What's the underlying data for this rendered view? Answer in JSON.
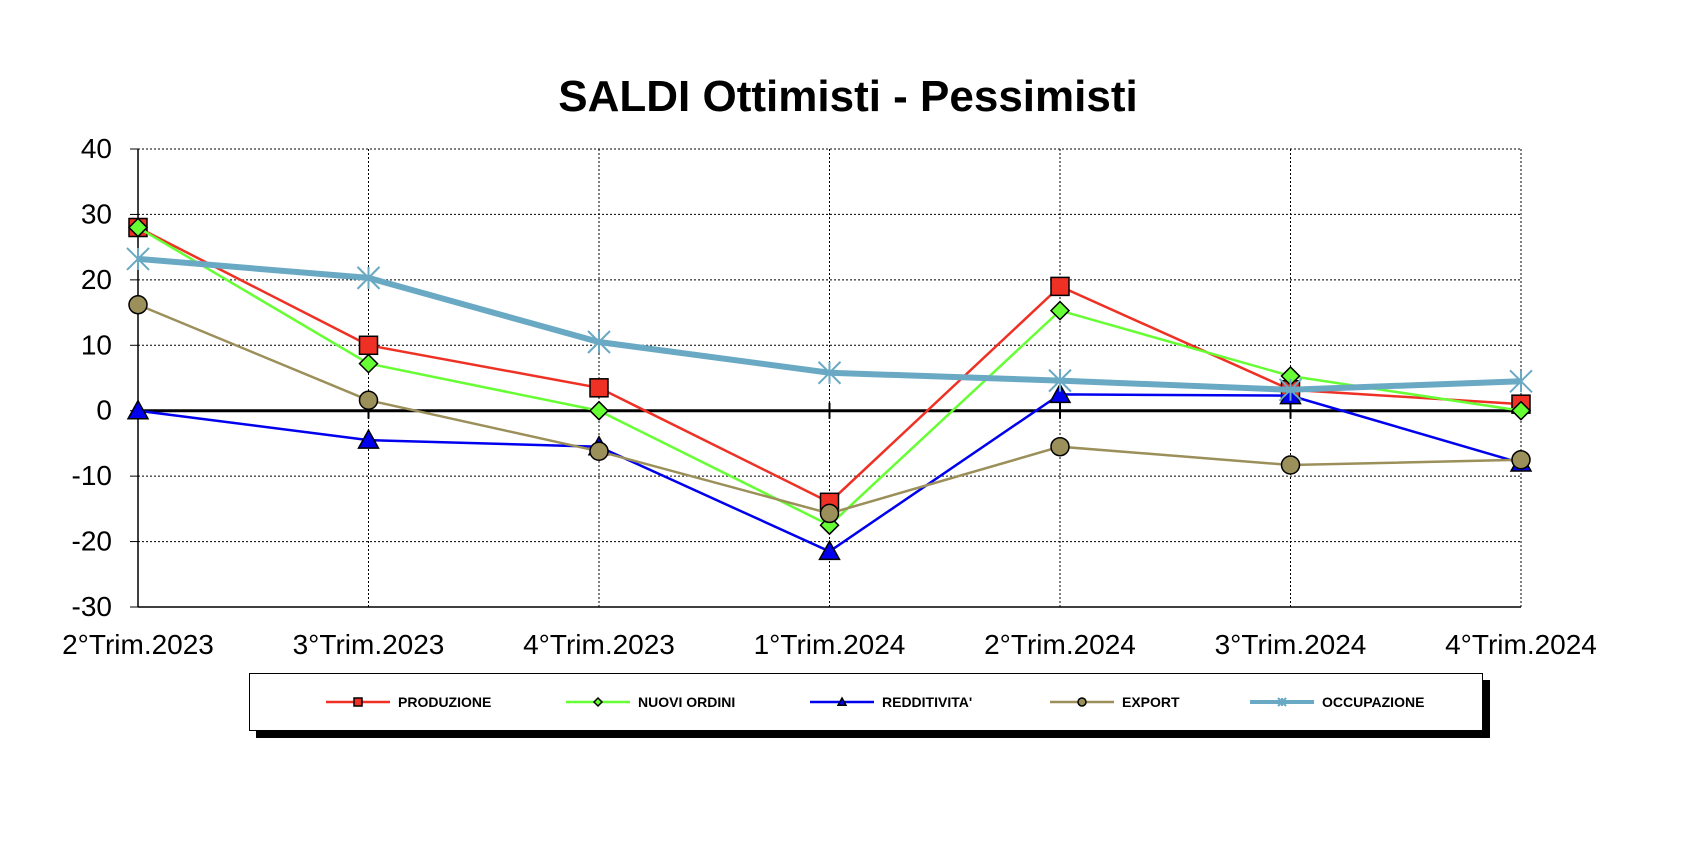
{
  "chart_data": {
    "type": "line",
    "title": "SALDI Ottimisti - Pessimisti",
    "xlabel": "",
    "ylabel": "",
    "categories": [
      "2°Trim.2023",
      "3°Trim.2023",
      "4°Trim.2023",
      "1°Trim.2024",
      "2°Trim.2024",
      "3°Trim.2024",
      "4°Trim.2024"
    ],
    "ylim": [
      -30,
      40
    ],
    "yticks": [
      40,
      30,
      20,
      10,
      0,
      -10,
      -20,
      -30
    ],
    "grid": true,
    "legend_position": "bottom",
    "series": [
      {
        "name": "PRODUZIONE",
        "values": [
          28,
          10,
          3.5,
          -14,
          19,
          3.2,
          1
        ],
        "color": "#ee3124",
        "marker": "square",
        "marker_fill": "#ee3124"
      },
      {
        "name": "NUOVI ORDINI",
        "values": [
          28,
          7.2,
          0,
          -17.5,
          15.3,
          5.3,
          0
        ],
        "color": "#66ff33",
        "marker": "diamond",
        "marker_fill": "#66ff33"
      },
      {
        "name": "REDDITIVITA'",
        "values": [
          0,
          -4.5,
          -5.5,
          -21.5,
          2.5,
          2.3,
          -8
        ],
        "color": "#0000ee",
        "marker": "triangle",
        "marker_fill": "#0000ee"
      },
      {
        "name": "EXPORT",
        "values": [
          16.2,
          1.6,
          -6.2,
          -15.7,
          -5.5,
          -8.3,
          -7.5
        ],
        "color": "#9b8f5a",
        "marker": "circle",
        "marker_fill": "#9b8f5a"
      },
      {
        "name": "OCCUPAZIONE",
        "values": [
          23.2,
          20.3,
          10.5,
          5.8,
          4.6,
          3.2,
          4.5
        ],
        "color": "#6aa9c4",
        "marker": "x",
        "marker_fill": "#6aa9c4"
      }
    ]
  }
}
